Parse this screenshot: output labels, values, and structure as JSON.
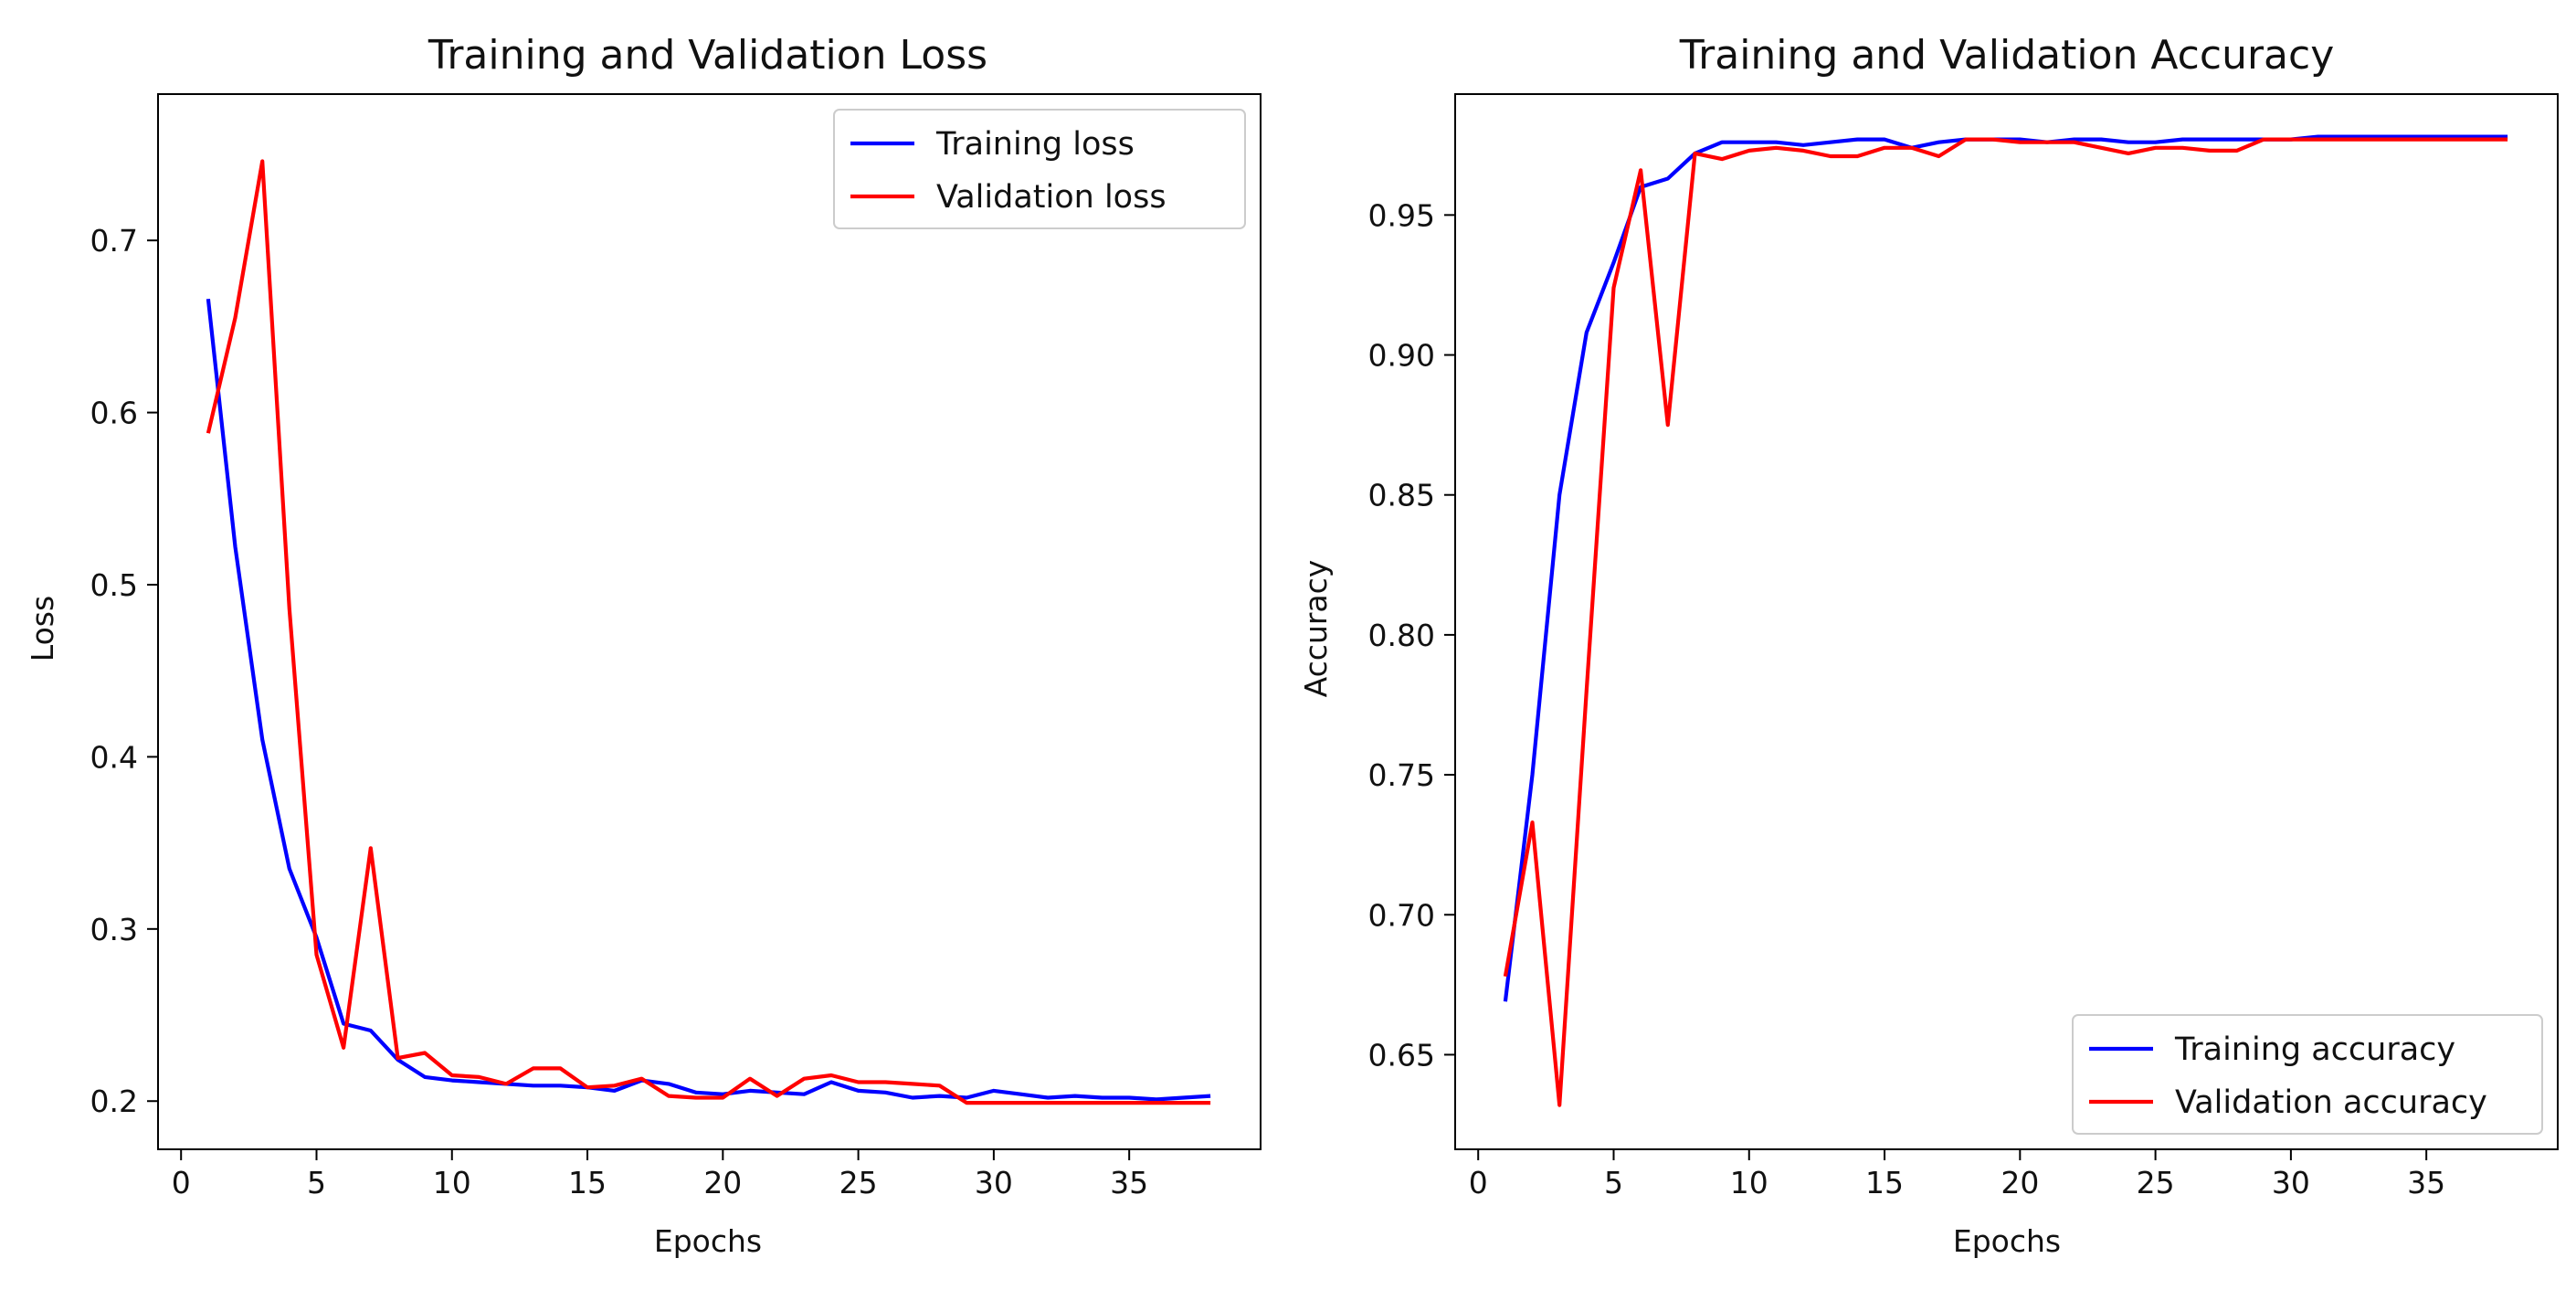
{
  "chart_data": [
    {
      "type": "line",
      "title": "Training and Validation Loss",
      "xlabel": "Epochs",
      "ylabel": "Loss",
      "xlim": [
        -0.85,
        39.85
      ],
      "ylim": [
        0.172,
        0.785
      ],
      "xticks": [
        0,
        5,
        10,
        15,
        20,
        25,
        30,
        35
      ],
      "yticks": [
        0.2,
        0.3,
        0.4,
        0.5,
        0.6,
        0.7
      ],
      "grid": false,
      "legend": "top-right",
      "x": [
        1,
        2,
        3,
        4,
        5,
        6,
        7,
        8,
        9,
        10,
        11,
        12,
        13,
        14,
        15,
        16,
        17,
        18,
        19,
        20,
        21,
        22,
        23,
        24,
        25,
        26,
        27,
        28,
        29,
        30,
        31,
        32,
        33,
        34,
        35,
        36,
        37,
        38
      ],
      "series": [
        {
          "name": "Training loss",
          "color": "#0000ff",
          "values": [
            0.666,
            0.522,
            0.41,
            0.335,
            0.295,
            0.245,
            0.241,
            0.224,
            0.214,
            0.212,
            0.211,
            0.21,
            0.209,
            0.209,
            0.208,
            0.206,
            0.212,
            0.21,
            0.205,
            0.204,
            0.206,
            0.205,
            0.204,
            0.211,
            0.206,
            0.205,
            0.202,
            0.203,
            0.202,
            0.206,
            0.204,
            0.202,
            0.203,
            0.202,
            0.202,
            0.201,
            0.202,
            0.203
          ]
        },
        {
          "name": "Validation loss",
          "color": "#ff0000",
          "values": [
            0.588,
            0.655,
            0.746,
            0.486,
            0.285,
            0.231,
            0.347,
            0.225,
            0.228,
            0.215,
            0.214,
            0.21,
            0.219,
            0.219,
            0.208,
            0.209,
            0.213,
            0.203,
            0.202,
            0.202,
            0.213,
            0.203,
            0.213,
            0.215,
            0.211,
            0.211,
            0.21,
            0.209,
            0.199,
            0.199,
            0.199,
            0.199,
            0.199,
            0.199,
            0.199,
            0.199,
            0.199,
            0.199
          ]
        }
      ]
    },
    {
      "type": "line",
      "title": "Training and Validation Accuracy",
      "xlabel": "Epochs",
      "ylabel": "Accuracy",
      "xlim": [
        -0.85,
        39.85
      ],
      "ylim": [
        0.6162,
        0.9932
      ],
      "xticks": [
        0,
        5,
        10,
        15,
        20,
        25,
        30,
        35
      ],
      "yticks": [
        0.65,
        0.7,
        0.75,
        0.8,
        0.85,
        0.9,
        0.95
      ],
      "grid": false,
      "legend": "bottom-right",
      "x": [
        1,
        2,
        3,
        4,
        5,
        6,
        7,
        8,
        9,
        10,
        11,
        12,
        13,
        14,
        15,
        16,
        17,
        18,
        19,
        20,
        21,
        22,
        23,
        24,
        25,
        26,
        27,
        28,
        29,
        30,
        31,
        32,
        33,
        34,
        35,
        36,
        37,
        38
      ],
      "series": [
        {
          "name": "Training accuracy",
          "color": "#0000ff",
          "values": [
            0.669,
            0.75,
            0.85,
            0.908,
            0.933,
            0.96,
            0.963,
            0.972,
            0.976,
            0.976,
            0.976,
            0.975,
            0.976,
            0.977,
            0.977,
            0.974,
            0.976,
            0.977,
            0.977,
            0.977,
            0.976,
            0.977,
            0.977,
            0.976,
            0.976,
            0.977,
            0.977,
            0.977,
            0.977,
            0.977,
            0.978,
            0.978,
            0.978,
            0.978,
            0.978,
            0.978,
            0.978,
            0.978
          ]
        },
        {
          "name": "Validation accuracy",
          "color": "#ff0000",
          "values": [
            0.678,
            0.733,
            0.632,
            0.78,
            0.924,
            0.966,
            0.875,
            0.972,
            0.97,
            0.973,
            0.974,
            0.973,
            0.971,
            0.971,
            0.974,
            0.974,
            0.971,
            0.977,
            0.977,
            0.976,
            0.976,
            0.976,
            0.974,
            0.972,
            0.974,
            0.974,
            0.973,
            0.973,
            0.977,
            0.977,
            0.977,
            0.977,
            0.977,
            0.977,
            0.977,
            0.977,
            0.977,
            0.977
          ]
        }
      ]
    }
  ]
}
